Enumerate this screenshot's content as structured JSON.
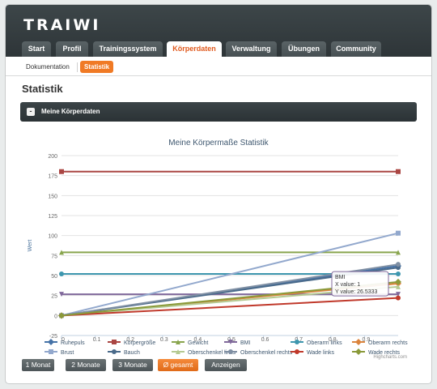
{
  "header": {
    "logo": "TRAIWI"
  },
  "tabs": [
    {
      "label": "Start",
      "active": false
    },
    {
      "label": "Profil",
      "active": false
    },
    {
      "label": "Trainingssystem",
      "active": false
    },
    {
      "label": "Körperdaten",
      "active": true
    },
    {
      "label": "Verwaltung",
      "active": false
    },
    {
      "label": "Übungen",
      "active": false
    },
    {
      "label": "Community",
      "active": false
    }
  ],
  "subnav": [
    {
      "label": "Dokumentation",
      "active": false
    },
    {
      "label": "Statistik",
      "active": true
    }
  ],
  "page": {
    "title": "Statistik"
  },
  "section": {
    "title": "Meine Körperdaten",
    "toggle": "-"
  },
  "chart_data": {
    "type": "line",
    "title": "Meine Körpermaße Statistik",
    "ylabel": "Wert",
    "xlabel": "",
    "xlim": [
      0,
      1
    ],
    "ylim": [
      -25,
      200
    ],
    "xticks": [
      0,
      0.1,
      0.2,
      0.3,
      0.4,
      0.5,
      0.6,
      0.7,
      0.8,
      0.9
    ],
    "xtick_labels": [
      "0",
      "0.1",
      "0.2",
      "0.3",
      "0.4",
      "0.5",
      "0.6",
      "0.7",
      "0.8",
      "0.9"
    ],
    "yticks": [
      -25,
      0,
      25,
      50,
      75,
      100,
      125,
      150,
      175,
      200
    ],
    "ytick_labels": [
      "-25",
      "0",
      "25",
      "50",
      "75",
      "100",
      "125",
      "150",
      "175",
      "200"
    ],
    "grid": true,
    "legend": "bottom",
    "series": [
      {
        "name": "Ruhepuls",
        "color": "#4572a7",
        "marker": "diamond",
        "x": [
          0,
          1
        ],
        "y": [
          0,
          62
        ]
      },
      {
        "name": "Körpergröße",
        "color": "#aa4643",
        "marker": "square",
        "x": [
          0,
          1
        ],
        "y": [
          180,
          180
        ]
      },
      {
        "name": "Gewicht",
        "color": "#89a54e",
        "marker": "triangle",
        "x": [
          0,
          1
        ],
        "y": [
          79,
          79
        ]
      },
      {
        "name": "BMI",
        "color": "#80699b",
        "marker": "triangle-down",
        "x": [
          0,
          1
        ],
        "y": [
          26.5333,
          26.5333
        ]
      },
      {
        "name": "Oberarm links",
        "color": "#3d96ae",
        "marker": "circle",
        "x": [
          0,
          1
        ],
        "y": [
          52,
          52
        ]
      },
      {
        "name": "Oberarm rechts",
        "color": "#db843d",
        "marker": "diamond",
        "x": [
          0,
          1
        ],
        "y": [
          0,
          40
        ]
      },
      {
        "name": "Brust",
        "color": "#92a8cd",
        "marker": "square",
        "x": [
          0,
          1
        ],
        "y": [
          0,
          103
        ]
      },
      {
        "name": "Bauch",
        "color": "#4a6a8a",
        "marker": "circle",
        "x": [
          0,
          1
        ],
        "y": [
          0,
          60
        ]
      },
      {
        "name": "Oberschenkel links",
        "color": "#b5ca92",
        "marker": "triangle",
        "x": [
          0,
          1
        ],
        "y": [
          0,
          36
        ]
      },
      {
        "name": "Oberschenkel rechts",
        "color": "#7f8fa3",
        "marker": "circle",
        "x": [
          0,
          1
        ],
        "y": [
          0,
          64
        ]
      },
      {
        "name": "Wade links",
        "color": "#c0392b",
        "marker": "circle",
        "x": [
          0,
          1
        ],
        "y": [
          0,
          22
        ]
      },
      {
        "name": "Wade rechts",
        "color": "#8a9a3a",
        "marker": "diamond",
        "x": [
          0,
          1
        ],
        "y": [
          0,
          42
        ]
      }
    ],
    "tooltip": {
      "series": "BMI",
      "x_label": "X value: 1",
      "y_label": "Y value: 26.5333",
      "x": 1,
      "y": 26.5333
    },
    "credit": "Highcharts.com"
  },
  "buttons": [
    {
      "label": "1 Monat",
      "primary": false
    },
    {
      "label": "2 Monate",
      "primary": false
    },
    {
      "label": "3 Monate",
      "primary": false
    },
    {
      "label": "Ø gesamt",
      "primary": true
    },
    {
      "label": "Anzeigen",
      "primary": false
    }
  ]
}
